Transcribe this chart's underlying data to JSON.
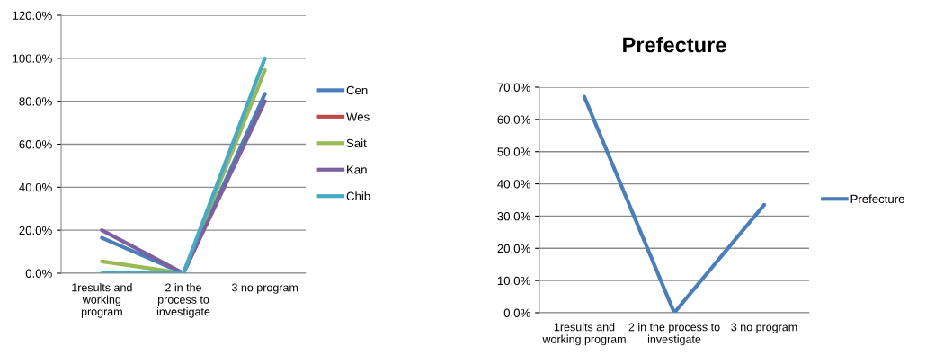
{
  "chart_data": [
    {
      "type": "line",
      "categories": [
        "1results and\nworking\nprogram",
        "2 in the\nprocess to\ninvestigate",
        "3 no program"
      ],
      "series": [
        {
          "name": "Cen",
          "color": "#4a7ebb",
          "values": [
            16.5,
            0,
            83.5
          ]
        },
        {
          "name": "Wes",
          "color": "#be4b48",
          "values": [
            null,
            null,
            null
          ]
        },
        {
          "name": "Sait",
          "color": "#98b954",
          "values": [
            5.5,
            0,
            94.5
          ]
        },
        {
          "name": "Kan",
          "color": "#7d60a0",
          "values": [
            20,
            0,
            80
          ]
        },
        {
          "name": "Chib",
          "color": "#46aac5",
          "values": [
            0,
            0,
            100
          ]
        }
      ],
      "ylim": [
        0,
        120
      ],
      "yticks": [
        {
          "value": 0,
          "label": "0.0%"
        },
        {
          "value": 20,
          "label": "20.0%"
        },
        {
          "value": 40,
          "label": "40.0%"
        },
        {
          "value": 60,
          "label": "60.0%"
        },
        {
          "value": 80,
          "label": "80.0%"
        },
        {
          "value": 100,
          "label": "100.0%"
        },
        {
          "value": 120,
          "label": "120.0%"
        }
      ],
      "grid": "y",
      "legend": "right"
    },
    {
      "type": "line",
      "title": "Prefecture",
      "categories": [
        "1results and\nworking program",
        "2 in the process to\ninvestigate",
        "3 no program"
      ],
      "series": [
        {
          "name": "Prefecture",
          "color": "#4a7ebb",
          "values": [
            67,
            0,
            33.5
          ]
        }
      ],
      "ylim": [
        0,
        70
      ],
      "yticks": [
        {
          "value": 0,
          "label": "0.0%"
        },
        {
          "value": 10,
          "label": "10.0%"
        },
        {
          "value": 20,
          "label": "20.0%"
        },
        {
          "value": 30,
          "label": "30.0%"
        },
        {
          "value": 40,
          "label": "40.0%"
        },
        {
          "value": 50,
          "label": "50.0%"
        },
        {
          "value": 60,
          "label": "60.0%"
        },
        {
          "value": 70,
          "label": "70.0%"
        }
      ],
      "grid": "y",
      "legend": "right"
    }
  ]
}
